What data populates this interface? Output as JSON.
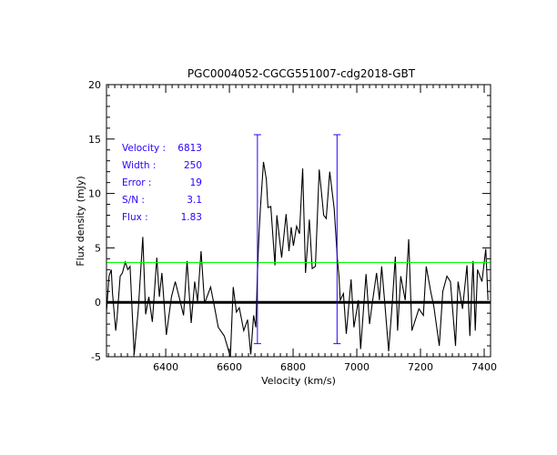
{
  "chart_data": {
    "type": "line",
    "title": "PGC0004052-CGCG551007-cdg2018-GBT",
    "xlabel": "Velocity (km/s)",
    "ylabel": "Flux density (mJy)",
    "xlim": [
      6214,
      7420
    ],
    "ylim": [
      -5,
      20
    ],
    "xticks": [
      6400,
      6600,
      6800,
      7000,
      7200,
      7400
    ],
    "yticks": [
      -5,
      0,
      5,
      10,
      15,
      20
    ],
    "grid": false,
    "stats": [
      {
        "label": "Velocity :",
        "value": "6813"
      },
      {
        "label": "Width :",
        "value": "250"
      },
      {
        "label": "Error :",
        "value": "19"
      },
      {
        "label": "S/N :",
        "value": "3.1"
      },
      {
        "label": "Flux :",
        "value": "1.83"
      }
    ],
    "baseline": 0,
    "threshold_line": {
      "y": 3.65,
      "color": "#00ff00"
    },
    "markers": {
      "x": [
        6688,
        6938
      ],
      "y_range": [
        -3.8,
        15.4
      ],
      "color": "#2a00ff"
    },
    "series": [
      {
        "name": "spectrum",
        "x": [
          6214,
          6222,
          6229,
          6233,
          6243,
          6247,
          6257,
          6264,
          6273,
          6281,
          6288,
          6301,
          6314,
          6328,
          6337,
          6347,
          6358,
          6372,
          6380,
          6388,
          6402,
          6418,
          6430,
          6442,
          6456,
          6467,
          6480,
          6491,
          6500,
          6511,
          6522,
          6541,
          6551,
          6565,
          6584,
          6603,
          6612,
          6622,
          6631,
          6645,
          6657,
          6667,
          6676,
          6683,
          6688,
          6693,
          6697,
          6707,
          6716,
          6721,
          6730,
          6743,
          6749,
          6764,
          6778,
          6787,
          6794,
          6801,
          6811,
          6820,
          6830,
          6839,
          6851,
          6860,
          6870,
          6882,
          6896,
          6904,
          6915,
          6929,
          6939,
          6944,
          6948,
          6958,
          6967,
          6982,
          6991,
          7005,
          7012,
          7029,
          7040,
          7048,
          7062,
          7071,
          7078,
          7088,
          7100,
          7112,
          7121,
          7128,
          7138,
          7152,
          7163,
          7173,
          7195,
          7209,
          7218,
          7232,
          7242,
          7259,
          7270,
          7283,
          7294,
          7310,
          7318,
          7332,
          7346,
          7355,
          7365,
          7372,
          7379,
          7393,
          7405,
          7412
        ],
        "y": [
          -0.9,
          2.4,
          3.0,
          0.8,
          -2.6,
          -1.5,
          2.4,
          2.7,
          3.7,
          3.0,
          3.3,
          -4.8,
          -0.6,
          6.0,
          -1.1,
          0.5,
          -1.8,
          4.1,
          0.5,
          2.7,
          -3.0,
          0.5,
          1.9,
          0.5,
          -1.2,
          3.8,
          -1.9,
          1.9,
          0.1,
          4.7,
          -0.1,
          1.4,
          -0.1,
          -2.3,
          -3.1,
          -5.0,
          1.4,
          -0.9,
          -0.5,
          -2.6,
          -1.6,
          -4.8,
          -1.2,
          -2.3,
          2.7,
          6.3,
          8.5,
          12.9,
          11.3,
          8.7,
          8.8,
          3.4,
          8.0,
          4.1,
          8.1,
          4.7,
          6.9,
          5.2,
          7.0,
          6.3,
          12.3,
          2.7,
          7.6,
          3.1,
          3.3,
          12.2,
          8.0,
          7.7,
          12.0,
          8.6,
          4.0,
          2.4,
          0.2,
          0.8,
          -2.9,
          2.1,
          -2.3,
          0.2,
          -4.3,
          2.6,
          -2.0,
          -0.2,
          2.7,
          0.2,
          3.3,
          -0.1,
          -4.5,
          0.2,
          4.2,
          -2.6,
          2.4,
          0.2,
          5.8,
          -2.6,
          -0.6,
          -1.2,
          3.3,
          1.0,
          -0.4,
          -4.0,
          1.0,
          2.4,
          1.9,
          -4.0,
          1.9,
          -0.6,
          3.4,
          -3.1,
          3.8,
          -2.6,
          3.0,
          1.9,
          4.9,
          0.2
        ]
      }
    ]
  }
}
